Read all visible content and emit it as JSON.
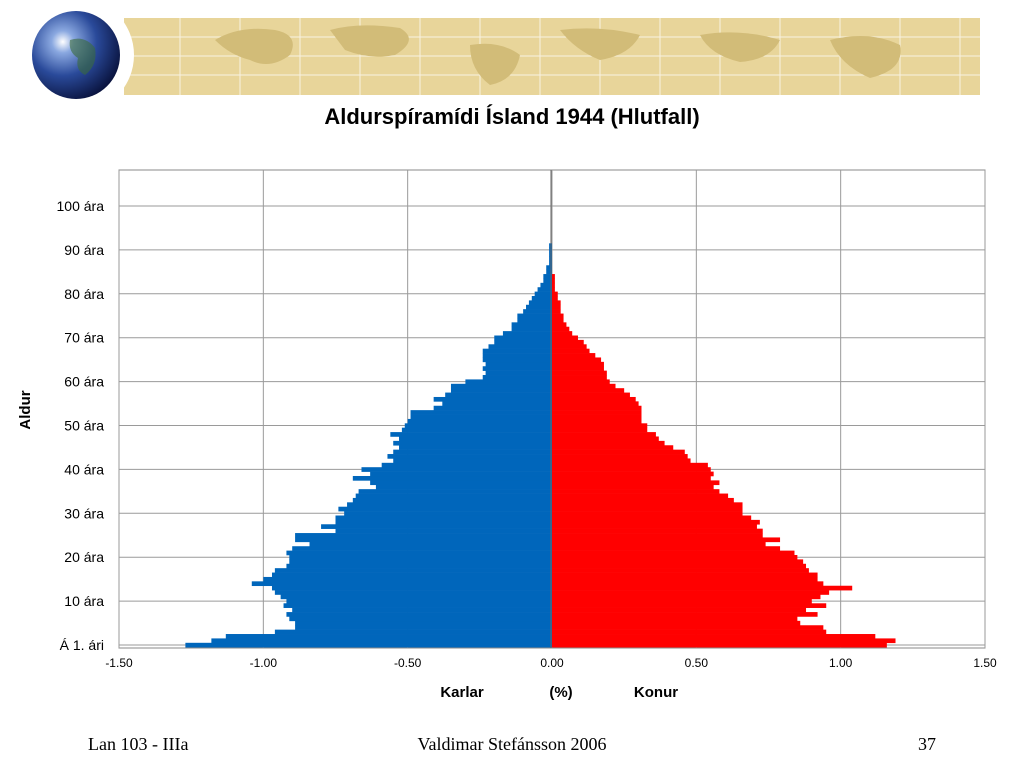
{
  "chart_data": {
    "type": "bar",
    "orientation": "horizontal",
    "title": "Aldurspíramídi Ísland 1944 (Hlutfall)",
    "ylabel": "Aldur",
    "xlabel_left": "Karlar",
    "xlabel_center": "(%)",
    "xlabel_right": "Konur",
    "xlim": [
      -1.5,
      1.5
    ],
    "x_ticks": [
      "-1.50",
      "-1.00",
      "-0.50",
      "0.00",
      "0.50",
      "1.00",
      "1.50"
    ],
    "y_tick_labels": [
      "Á 1. ári",
      "10 ára",
      "20 ára",
      "30 ára",
      "40 ára",
      "50 ára",
      "60 ára",
      "70 ára",
      "80 ára",
      "90 ára",
      "100 ára"
    ],
    "grid": true,
    "series": [
      {
        "color": "#0066bb",
        "values": [
          -1.27,
          -1.18,
          -1.13,
          -0.96,
          -0.89,
          -0.89,
          -0.91,
          -0.92,
          -0.9,
          -0.93,
          -0.92,
          -0.94,
          -0.96,
          -0.97,
          -1.04,
          -1.0,
          -0.97,
          -0.96,
          -0.92,
          -0.91,
          -0.91,
          -0.92,
          -0.9,
          -0.84,
          -0.89,
          -0.89,
          -0.75,
          -0.8,
          -0.75,
          -0.75,
          -0.72,
          -0.74,
          -0.71,
          -0.69,
          -0.68,
          -0.67,
          -0.61,
          -0.63,
          -0.69,
          -0.63,
          -0.66,
          -0.59,
          -0.55,
          -0.57,
          -0.55,
          -0.53,
          -0.55,
          -0.53,
          -0.56,
          -0.52,
          -0.51,
          -0.5,
          -0.49,
          -0.49,
          -0.41,
          -0.38,
          -0.41,
          -0.37,
          -0.35,
          -0.35,
          -0.3,
          -0.24,
          -0.23,
          -0.24,
          -0.23,
          -0.24,
          -0.24,
          -0.24,
          -0.22,
          -0.2,
          -0.2,
          -0.17,
          -0.14,
          -0.14,
          -0.12,
          -0.12,
          -0.1,
          -0.09,
          -0.08,
          -0.07,
          -0.06,
          -0.05,
          -0.04,
          -0.03,
          -0.03,
          -0.02,
          -0.02,
          -0.01,
          -0.01,
          -0.01,
          -0.01,
          -0.01,
          0,
          0,
          0,
          0,
          0,
          0,
          0,
          0,
          0
        ]
      },
      {
        "color": "#ff0000",
        "values": [
          1.16,
          1.19,
          1.12,
          0.95,
          0.94,
          0.86,
          0.85,
          0.92,
          0.88,
          0.95,
          0.9,
          0.93,
          0.96,
          1.04,
          0.94,
          0.92,
          0.92,
          0.89,
          0.88,
          0.87,
          0.85,
          0.84,
          0.79,
          0.74,
          0.79,
          0.73,
          0.73,
          0.71,
          0.72,
          0.69,
          0.66,
          0.66,
          0.66,
          0.63,
          0.61,
          0.58,
          0.56,
          0.58,
          0.55,
          0.56,
          0.55,
          0.54,
          0.48,
          0.47,
          0.46,
          0.42,
          0.39,
          0.37,
          0.36,
          0.33,
          0.33,
          0.31,
          0.31,
          0.31,
          0.31,
          0.3,
          0.29,
          0.27,
          0.25,
          0.22,
          0.2,
          0.19,
          0.19,
          0.18,
          0.18,
          0.17,
          0.15,
          0.13,
          0.12,
          0.11,
          0.09,
          0.07,
          0.06,
          0.05,
          0.04,
          0.04,
          0.03,
          0.03,
          0.03,
          0.02,
          0.02,
          0.01,
          0.01,
          0.01,
          0.01,
          0,
          0,
          0,
          0,
          0,
          0,
          0,
          0,
          0,
          0,
          0,
          0,
          0,
          0,
          0,
          0
        ]
      }
    ]
  },
  "footer": {
    "left": "Lan 103 - IIIa",
    "center": "Valdimar Stefánsson 2006",
    "right": "37"
  }
}
